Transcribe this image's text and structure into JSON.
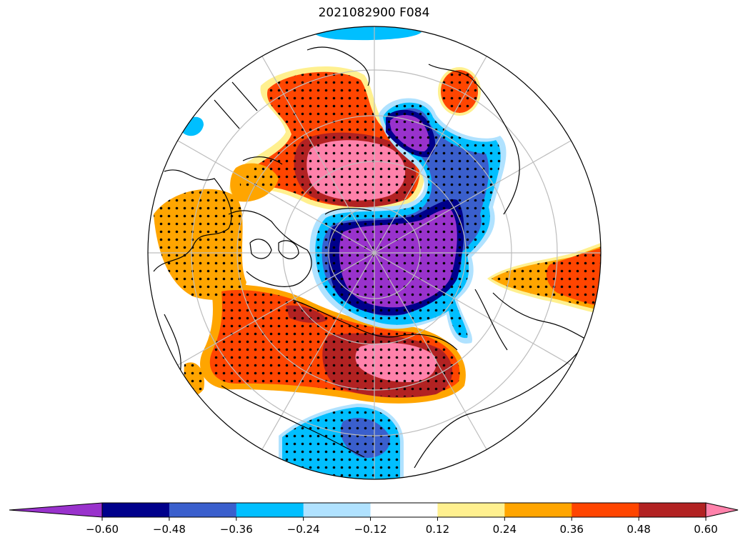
{
  "chart_data": {
    "type": "heatmap",
    "title": "2021082900 F084",
    "projection": "north-polar-stereographic",
    "stippling": "significance dots over shaded regions",
    "colorbar": {
      "orientation": "horizontal",
      "extend": "both",
      "levels": [
        -0.6,
        -0.48,
        -0.36,
        -0.24,
        -0.12,
        0.12,
        0.24,
        0.36,
        0.48,
        0.6
      ],
      "tick_labels": [
        "−0.60",
        "−0.48",
        "−0.36",
        "−0.24",
        "−0.12",
        "0.12",
        "0.24",
        "0.36",
        "0.48",
        "0.60"
      ],
      "colors": [
        "#9932cc",
        "#00008b",
        "#3a5fcd",
        "#00bfff",
        "#b0e2ff",
        "#ffffff",
        "#fff08f",
        "#ffa500",
        "#ff4500",
        "#b22222",
        "#ff82ab"
      ]
    },
    "regions": [
      {
        "name": "neg-anomaly-polar",
        "min_class": "below -0.60",
        "stippled": true
      },
      {
        "name": "neg-anomaly-north-atlantic-canada",
        "min_class": "below -0.60",
        "stippled": true
      },
      {
        "name": "neg-anomaly-north-pacific",
        "min_class": "-0.36 to -0.24",
        "stippled": true
      },
      {
        "name": "pos-anomaly-siberia",
        "max_class": "above 0.60",
        "stippled": true
      },
      {
        "name": "pos-anomaly-asia-pacific",
        "max_class": "above 0.60",
        "stippled": true
      },
      {
        "name": "pos-anomaly-europe",
        "max_class": "0.24 to 0.36",
        "stippled": true
      },
      {
        "name": "pos-anomaly-north-america-east",
        "max_class": "0.36 to 0.48",
        "stippled": true
      }
    ]
  }
}
